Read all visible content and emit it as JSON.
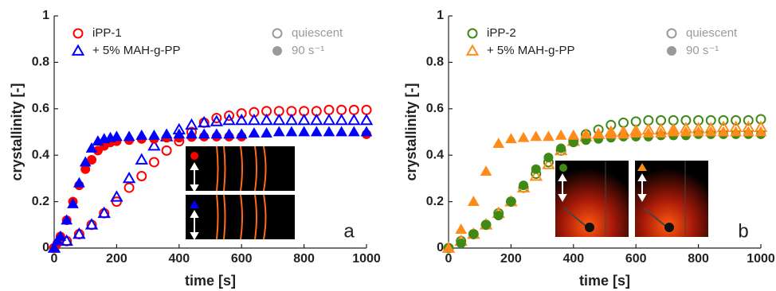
{
  "chart_data": [
    {
      "type": "scatter",
      "xlabel": "time [s]",
      "ylabel": "crystallinity [-]",
      "annotation": "a",
      "xlim": [
        0,
        1000
      ],
      "ylim": [
        0,
        1
      ],
      "xticks": [
        0,
        200,
        400,
        600,
        800,
        1000
      ],
      "yticks": [
        0,
        0.2,
        0.4,
        0.6,
        0.8,
        1
      ],
      "style_legend": [
        {
          "label": "quiescent",
          "filled": false,
          "color": "#9a9a9a"
        },
        {
          "label": "90 s⁻¹",
          "filled": true,
          "color": "#9a9a9a"
        }
      ],
      "series": [
        {
          "name": "iPP-1",
          "color": "#ff0000",
          "marker": "circle",
          "filled": false,
          "x": [
            0,
            40,
            80,
            120,
            160,
            200,
            240,
            280,
            320,
            360,
            400,
            440,
            480,
            520,
            560,
            600,
            640,
            680,
            720,
            760,
            800,
            840,
            880,
            920,
            960,
            1000
          ],
          "values": [
            0,
            0.03,
            0.06,
            0.1,
            0.15,
            0.2,
            0.26,
            0.31,
            0.37,
            0.42,
            0.46,
            0.5,
            0.54,
            0.56,
            0.57,
            0.58,
            0.585,
            0.59,
            0.59,
            0.59,
            0.59,
            0.59,
            0.595,
            0.595,
            0.595,
            0.595
          ]
        },
        {
          "name": "+ 5% MAH-g-PP",
          "color": "#0000ff",
          "marker": "triangle",
          "filled": false,
          "x": [
            0,
            40,
            80,
            120,
            160,
            200,
            240,
            280,
            320,
            360,
            400,
            440,
            480,
            520,
            560,
            600,
            640,
            680,
            720,
            760,
            800,
            840,
            880,
            920,
            960,
            1000
          ],
          "values": [
            0,
            0.03,
            0.06,
            0.1,
            0.15,
            0.22,
            0.3,
            0.38,
            0.44,
            0.48,
            0.51,
            0.53,
            0.54,
            0.545,
            0.55,
            0.55,
            0.55,
            0.55,
            0.55,
            0.55,
            0.55,
            0.55,
            0.55,
            0.55,
            0.55,
            0.55
          ]
        },
        {
          "color": "#ff0000",
          "marker": "circle",
          "filled": true,
          "x": [
            0,
            10,
            20,
            40,
            60,
            80,
            100,
            120,
            140,
            160,
            180,
            200,
            240,
            280,
            320,
            360,
            400,
            440,
            480,
            520,
            560,
            600,
            1000
          ],
          "values": [
            0,
            0.02,
            0.05,
            0.12,
            0.2,
            0.27,
            0.34,
            0.38,
            0.42,
            0.44,
            0.455,
            0.46,
            0.465,
            0.47,
            0.47,
            0.475,
            0.475,
            0.478,
            0.48,
            0.48,
            0.48,
            0.48,
            0.49
          ]
        },
        {
          "color": "#0000ff",
          "marker": "triangle",
          "filled": true,
          "x": [
            0,
            10,
            20,
            40,
            60,
            80,
            100,
            120,
            140,
            160,
            180,
            200,
            240,
            280,
            320,
            360,
            400,
            440,
            480,
            520,
            560,
            600,
            640,
            680,
            720,
            760,
            800,
            840,
            880,
            920,
            960,
            1000
          ],
          "values": [
            0,
            0.03,
            0.05,
            0.12,
            0.19,
            0.28,
            0.37,
            0.43,
            0.46,
            0.47,
            0.475,
            0.48,
            0.48,
            0.485,
            0.485,
            0.49,
            0.49,
            0.49,
            0.49,
            0.49,
            0.49,
            0.49,
            0.495,
            0.495,
            0.5,
            0.5,
            0.5,
            0.5,
            0.5,
            0.5,
            0.5,
            0.5
          ]
        }
      ]
    },
    {
      "type": "scatter",
      "xlabel": "time [s]",
      "ylabel": "crystallinity [-]",
      "annotation": "b",
      "xlim": [
        0,
        1000
      ],
      "ylim": [
        0,
        1
      ],
      "xticks": [
        0,
        200,
        400,
        600,
        800,
        1000
      ],
      "yticks": [
        0,
        0.2,
        0.4,
        0.6,
        0.8,
        1
      ],
      "style_legend": [
        {
          "label": "quiescent",
          "filled": false,
          "color": "#9a9a9a"
        },
        {
          "label": "90 s⁻¹",
          "filled": true,
          "color": "#9a9a9a"
        }
      ],
      "series": [
        {
          "name": "iPP-2",
          "color": "#3f8a16",
          "marker": "circle",
          "filled": false,
          "x": [
            0,
            40,
            80,
            120,
            160,
            200,
            240,
            280,
            320,
            360,
            400,
            440,
            480,
            520,
            560,
            600,
            640,
            680,
            720,
            760,
            800,
            840,
            880,
            920,
            960,
            1000
          ],
          "values": [
            0,
            0.03,
            0.06,
            0.1,
            0.15,
            0.2,
            0.26,
            0.32,
            0.37,
            0.42,
            0.46,
            0.49,
            0.51,
            0.53,
            0.54,
            0.545,
            0.55,
            0.55,
            0.55,
            0.55,
            0.55,
            0.55,
            0.55,
            0.55,
            0.55,
            0.555
          ]
        },
        {
          "name": "+ 5% MAH-g-PP",
          "color": "#ff8c1a",
          "marker": "triangle",
          "filled": false,
          "x": [
            0,
            40,
            80,
            120,
            160,
            200,
            240,
            280,
            320,
            360,
            400,
            440,
            480,
            520,
            560,
            600,
            640,
            680,
            720,
            760,
            800,
            840,
            880,
            920,
            960,
            1000
          ],
          "values": [
            0,
            0.03,
            0.06,
            0.1,
            0.15,
            0.2,
            0.26,
            0.31,
            0.36,
            0.42,
            0.46,
            0.48,
            0.49,
            0.5,
            0.5,
            0.505,
            0.51,
            0.51,
            0.51,
            0.515,
            0.515,
            0.515,
            0.52,
            0.52,
            0.52,
            0.52
          ]
        },
        {
          "color": "#3f8a16",
          "marker": "circle",
          "filled": true,
          "x": [
            0,
            40,
            80,
            120,
            160,
            200,
            240,
            280,
            320,
            360,
            400,
            440,
            480,
            520,
            560,
            600,
            640,
            680,
            720,
            760,
            800,
            840,
            880,
            920,
            960,
            1000
          ],
          "values": [
            0,
            0.02,
            0.06,
            0.1,
            0.14,
            0.2,
            0.27,
            0.34,
            0.39,
            0.43,
            0.455,
            0.465,
            0.47,
            0.475,
            0.48,
            0.48,
            0.48,
            0.485,
            0.485,
            0.485,
            0.49,
            0.49,
            0.49,
            0.49,
            0.49,
            0.49
          ]
        },
        {
          "color": "#ff8c1a",
          "marker": "triangle",
          "filled": true,
          "x": [
            0,
            40,
            80,
            120,
            160,
            200,
            240,
            280,
            320,
            360,
            400,
            440,
            480,
            520,
            560,
            600,
            640,
            680,
            720,
            760,
            800,
            840,
            880,
            920,
            960,
            1000
          ],
          "values": [
            0,
            0.08,
            0.2,
            0.33,
            0.45,
            0.47,
            0.475,
            0.48,
            0.48,
            0.485,
            0.485,
            0.49,
            0.49,
            0.49,
            0.49,
            0.495,
            0.495,
            0.495,
            0.5,
            0.5,
            0.5,
            0.5,
            0.5,
            0.5,
            0.5,
            0.5
          ]
        }
      ]
    }
  ]
}
